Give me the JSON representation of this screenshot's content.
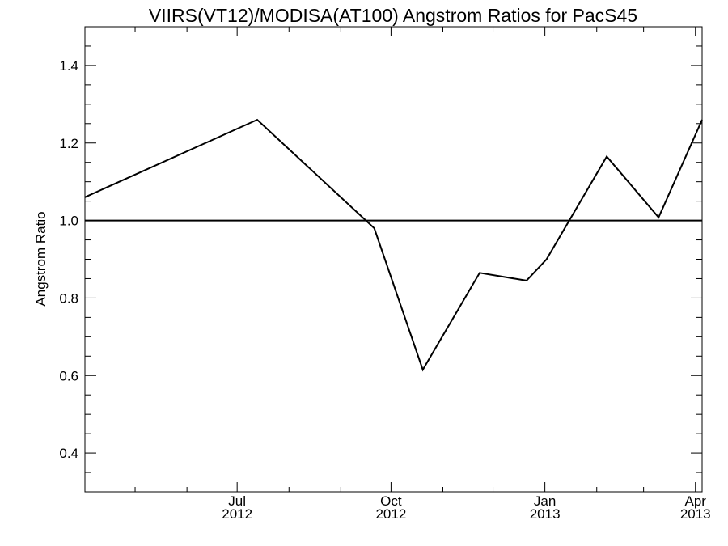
{
  "chart_data": {
    "type": "line",
    "title": "VIIRS(VT12)/MODISA(AT100)  Angstrom Ratios for PacS45",
    "xlabel": "",
    "ylabel": "Angstrom Ratio",
    "ylim": [
      0.3,
      1.5
    ],
    "y_ticks": [
      "0.4",
      "0.6",
      "0.8",
      "1.0",
      "1.2",
      "1.4"
    ],
    "xlim": [
      "2012-04-01",
      "2013-04-05"
    ],
    "x_ticks": [
      {
        "month": "Jul",
        "year": "2012",
        "date": "2012-07-01"
      },
      {
        "month": "Oct",
        "year": "2012",
        "date": "2012-10-01"
      },
      {
        "month": "Jan",
        "year": "2013",
        "date": "2013-01-01"
      },
      {
        "month": "Apr",
        "year": "2013",
        "date": "2013-04-01"
      }
    ],
    "minor_tick_dates": [
      "2012-05-01",
      "2012-06-01",
      "2012-08-01",
      "2012-09-01",
      "2012-11-01",
      "2012-12-01",
      "2013-02-01",
      "2013-03-01"
    ],
    "reference_line": 1.0,
    "grid": false,
    "series": [
      {
        "name": "",
        "x": [
          "2012-04-01",
          "2012-07-13",
          "2012-09-21",
          "2012-10-20",
          "2012-11-23",
          "2012-12-21",
          "2013-01-02",
          "2013-02-07",
          "2013-03-10",
          "2013-04-05"
        ],
        "values": [
          1.06,
          1.26,
          0.98,
          0.615,
          0.865,
          0.845,
          0.9,
          1.165,
          1.008,
          1.26
        ]
      }
    ]
  }
}
